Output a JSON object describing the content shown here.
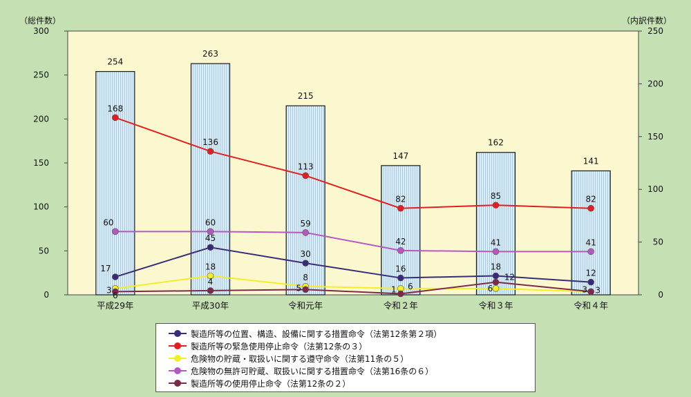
{
  "chart_data": {
    "type": "bar+line",
    "left_axis_title": "（総件数）",
    "right_axis_title": "（内訳件数）",
    "left_ylim": [
      0,
      300
    ],
    "left_ticks": [
      "0",
      "50",
      "100",
      "150",
      "200",
      "250",
      "300"
    ],
    "right_ylim": [
      0,
      250
    ],
    "right_ticks": [
      "0",
      "50",
      "100",
      "150",
      "200",
      "250"
    ],
    "categories": [
      "平成29年",
      "平成30年",
      "令和元年",
      "令和２年",
      "令和３年",
      "令和４年"
    ],
    "bars": {
      "values": [
        254,
        263,
        215,
        147,
        162,
        141
      ]
    },
    "series": [
      {
        "name": "製造所等の位置、構造、設備に関する措置命令（法第12条第２項）",
        "color": "#3a2a7a",
        "values": [
          17,
          45,
          30,
          16,
          18,
          12
        ]
      },
      {
        "name": "製造所等の緊急使用停止命令（法第12条の３）",
        "color": "#e41e1e",
        "values": [
          168,
          136,
          113,
          82,
          85,
          82
        ]
      },
      {
        "name": "危険物の貯蔵・取扱いに関する遵守命令（法第11条の５）",
        "color": "#f2ee2a",
        "values": [
          6,
          18,
          8,
          6,
          6,
          3
        ]
      },
      {
        "name": "危険物の無許可貯蔵、取扱いに関する措置命令（法第16条の６）",
        "color": "#b757c0",
        "values": [
          60,
          60,
          59,
          42,
          41,
          41
        ]
      },
      {
        "name": "製造所等の使用停止命令（法第12条の２）",
        "color": "#7b2a4a",
        "values": [
          3,
          4,
          5,
          1,
          12,
          3
        ]
      }
    ],
    "plot_background": "#fbf8cf",
    "bar_fill": "#d9ecf7",
    "bar_hatch": "#a9cde6",
    "grid": false,
    "legend_position": "bottom"
  }
}
